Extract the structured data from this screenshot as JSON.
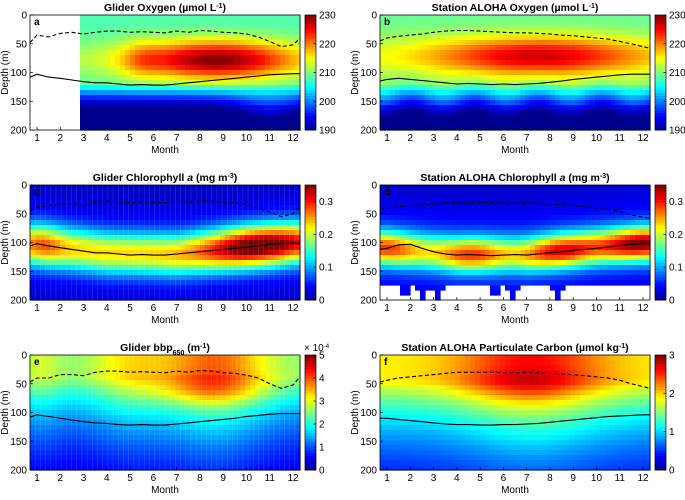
{
  "chart_data": [
    {
      "type": "heatmap",
      "panel_label": "a",
      "title_parts": [
        "Glider Oxygen (µmol L",
        "-1",
        ")"
      ],
      "xlabel": "Month",
      "ylabel": "Depth (m)",
      "x_ticks": [
        "1",
        "2",
        "3",
        "4",
        "5",
        "6",
        "7",
        "8",
        "9",
        "10",
        "11",
        "12"
      ],
      "y_ticks": [
        "0",
        "50",
        "100",
        "150",
        "200"
      ],
      "xlim": [
        0.7,
        12.3
      ],
      "ylim": [
        0,
        200
      ],
      "colorbar": {
        "min": 190,
        "max": 230,
        "ticks": [
          "190",
          "200",
          "210",
          "220",
          "230"
        ],
        "exponent_label": ""
      },
      "field": {
        "type": "oxygen_glider",
        "vmin": 190,
        "vmax": 230,
        "blank_before_month": 2.75
      },
      "dashed_line": {
        "name": "mixed layer depth",
        "x": [
          0.7,
          1.0,
          1.5,
          2.0,
          2.5,
          3.0,
          3.5,
          4.0,
          4.5,
          5.0,
          5.5,
          6.0,
          6.5,
          7.0,
          7.5,
          8.0,
          8.5,
          9.0,
          9.5,
          10.0,
          10.5,
          11.0,
          11.5,
          12.0,
          12.3
        ],
        "y": [
          48,
          35,
          38,
          32,
          30,
          33,
          30,
          28,
          28,
          30,
          29,
          30,
          31,
          28,
          30,
          27,
          28,
          30,
          31,
          33,
          38,
          46,
          55,
          52,
          40
        ]
      },
      "solid_line": {
        "name": "deep chlorophyll maximum",
        "x": [
          0.7,
          1.0,
          1.5,
          2.0,
          2.5,
          3.0,
          3.5,
          4.0,
          4.5,
          5.0,
          5.5,
          6.0,
          6.5,
          7.0,
          7.5,
          8.0,
          8.5,
          9.0,
          9.5,
          10.0,
          10.5,
          11.0,
          11.5,
          12.0,
          12.3
        ],
        "y": [
          108,
          103,
          108,
          110,
          113,
          116,
          118,
          118,
          120,
          122,
          121,
          122,
          122,
          120,
          118,
          116,
          114,
          112,
          110,
          108,
          106,
          104,
          103,
          102,
          102
        ]
      }
    },
    {
      "type": "heatmap",
      "panel_label": "b",
      "title_parts": [
        "Station ALOHA Oxygen (µmol L",
        "-1",
        ")"
      ],
      "xlabel": "Month",
      "ylabel": "Depth (m)",
      "x_ticks": [
        "1",
        "2",
        "3",
        "4",
        "5",
        "6",
        "7",
        "8",
        "9",
        "10",
        "11",
        "12"
      ],
      "y_ticks": [
        "0",
        "50",
        "100",
        "150",
        "200"
      ],
      "xlim": [
        0.7,
        12.3
      ],
      "ylim": [
        0,
        200
      ],
      "colorbar": {
        "min": 190,
        "max": 230,
        "ticks": [
          "190",
          "200",
          "210",
          "220",
          "230"
        ],
        "exponent_label": ""
      },
      "field": {
        "type": "oxygen_aloha",
        "vmin": 190,
        "vmax": 230
      },
      "dashed_line": {
        "name": "mixed layer depth",
        "x": [
          0.7,
          1.0,
          1.5,
          2.0,
          2.5,
          3.0,
          3.5,
          4.0,
          4.5,
          5.0,
          5.5,
          6.0,
          6.5,
          7.0,
          7.5,
          8.0,
          8.5,
          9.0,
          9.5,
          10.0,
          10.5,
          11.0,
          11.5,
          12.0,
          12.3
        ],
        "y": [
          45,
          40,
          37,
          35,
          33,
          30,
          28,
          27,
          27,
          28,
          29,
          30,
          31,
          31,
          32,
          33,
          35,
          36,
          38,
          40,
          42,
          46,
          50,
          55,
          58
        ]
      },
      "solid_line": {
        "name": "deep chlorophyll maximum",
        "x": [
          0.7,
          1.0,
          1.5,
          2.0,
          2.5,
          3.0,
          3.5,
          4.0,
          4.5,
          5.0,
          5.5,
          6.0,
          6.5,
          7.0,
          7.5,
          8.0,
          8.5,
          9.0,
          9.5,
          10.0,
          10.5,
          11.0,
          11.5,
          12.0,
          12.3
        ],
        "y": [
          115,
          112,
          110,
          112,
          114,
          116,
          118,
          120,
          119,
          120,
          121,
          120,
          121,
          120,
          119,
          117,
          115,
          112,
          110,
          108,
          106,
          104,
          103,
          103,
          103
        ]
      }
    },
    {
      "type": "heatmap",
      "panel_label": "c",
      "title_parts": [
        "Glider Chlorophyll ",
        "a",
        " (mg m",
        "-3",
        ")"
      ],
      "xlabel": "Month",
      "ylabel": "Depth (m)",
      "x_ticks": [
        "1",
        "2",
        "3",
        "4",
        "5",
        "6",
        "7",
        "8",
        "9",
        "10",
        "11",
        "12"
      ],
      "y_ticks": [
        "0",
        "50",
        "100",
        "150",
        "200"
      ],
      "xlim": [
        0.7,
        12.3
      ],
      "ylim": [
        0,
        200
      ],
      "colorbar": {
        "min": 0,
        "max": 0.35,
        "ticks": [
          "0",
          "0.1",
          "0.2",
          "0.3"
        ],
        "tick_values": [
          0,
          0.1,
          0.2,
          0.3
        ],
        "exponent_label": ""
      },
      "field": {
        "type": "chl_glider",
        "vmin": 0,
        "vmax": 0.35
      },
      "dashed_line": {
        "name": "mixed layer depth",
        "x": [
          0.7,
          1.0,
          1.5,
          2.0,
          2.5,
          3.0,
          3.5,
          4.0,
          4.5,
          5.0,
          5.5,
          6.0,
          6.5,
          7.0,
          7.5,
          8.0,
          8.5,
          9.0,
          9.5,
          10.0,
          10.5,
          11.0,
          11.5,
          12.0,
          12.3
        ],
        "y": [
          45,
          38,
          36,
          33,
          32,
          36,
          30,
          28,
          29,
          31,
          29,
          30,
          31,
          28,
          30,
          27,
          28,
          30,
          31,
          34,
          40,
          47,
          55,
          50,
          38
        ]
      },
      "solid_line": {
        "name": "deep chlorophyll maximum",
        "x": [
          0.7,
          1.0,
          1.5,
          2.0,
          2.5,
          3.0,
          3.5,
          4.0,
          4.5,
          5.0,
          5.5,
          6.0,
          6.5,
          7.0,
          7.5,
          8.0,
          8.5,
          9.0,
          9.5,
          10.0,
          10.5,
          11.0,
          11.5,
          12.0,
          12.3
        ],
        "y": [
          106,
          102,
          106,
          109,
          112,
          115,
          118,
          118,
          120,
          122,
          121,
          122,
          122,
          120,
          118,
          116,
          114,
          112,
          110,
          108,
          106,
          103,
          102,
          101,
          101
        ]
      }
    },
    {
      "type": "heatmap",
      "panel_label": "d",
      "title_parts": [
        "Station ALOHA Chlorophyll ",
        "a",
        " (mg m",
        "-3",
        ")"
      ],
      "xlabel": "Month",
      "ylabel": "Depth (m)",
      "x_ticks": [
        "1",
        "2",
        "3",
        "4",
        "5",
        "6",
        "7",
        "8",
        "9",
        "10",
        "11",
        "12"
      ],
      "y_ticks": [
        "0",
        "50",
        "100",
        "150",
        "200"
      ],
      "xlim": [
        0.7,
        12.3
      ],
      "ylim": [
        0,
        200
      ],
      "colorbar": {
        "min": 0,
        "max": 0.35,
        "ticks": [
          "0",
          "0.1",
          "0.2",
          "0.3"
        ],
        "tick_values": [
          0,
          0.1,
          0.2,
          0.3
        ],
        "exponent_label": ""
      },
      "field": {
        "type": "chl_aloha",
        "vmin": 0,
        "vmax": 0.35,
        "data_bottom_depth": 175,
        "notch_months": [
          1.8,
          2.5,
          3.2,
          5.6,
          6.4,
          8.3
        ]
      },
      "dashed_line": {
        "name": "mixed layer depth",
        "x": [
          0.7,
          1.0,
          1.5,
          2.0,
          2.5,
          3.0,
          3.5,
          4.0,
          4.5,
          5.0,
          5.5,
          6.0,
          6.5,
          7.0,
          7.5,
          8.0,
          8.5,
          9.0,
          9.5,
          10.0,
          10.5,
          11.0,
          11.5,
          12.0,
          12.3
        ],
        "y": [
          42,
          40,
          38,
          36,
          35,
          33,
          31,
          30,
          30,
          31,
          30,
          30,
          29,
          31,
          32,
          33,
          34,
          36,
          38,
          40,
          42,
          46,
          52,
          56,
          58
        ]
      },
      "solid_line": {
        "name": "deep chlorophyll maximum",
        "x": [
          0.7,
          1.0,
          1.5,
          2.0,
          2.5,
          3.0,
          3.5,
          4.0,
          4.5,
          5.0,
          5.5,
          6.0,
          6.5,
          7.0,
          7.5,
          8.0,
          8.5,
          9.0,
          9.5,
          10.0,
          10.5,
          11.0,
          11.5,
          12.0,
          12.3
        ],
        "y": [
          112,
          110,
          104,
          103,
          110,
          116,
          120,
          122,
          121,
          122,
          123,
          122,
          121,
          122,
          120,
          118,
          116,
          114,
          112,
          110,
          108,
          105,
          103,
          102,
          102
        ]
      }
    },
    {
      "type": "heatmap",
      "panel_label": "e",
      "title_parts": [
        "Glider bbp",
        "650",
        " (m",
        "-1",
        ")"
      ],
      "xlabel": "Month",
      "ylabel": "Depth (m)",
      "x_ticks": [
        "1",
        "2",
        "3",
        "4",
        "5",
        "6",
        "7",
        "8",
        "9",
        "10",
        "11",
        "12"
      ],
      "y_ticks": [
        "0",
        "50",
        "100",
        "150",
        "200"
      ],
      "xlim": [
        0.7,
        12.3
      ],
      "ylim": [
        0,
        200
      ],
      "colorbar": {
        "min": 0,
        "max": 5,
        "ticks": [
          "0",
          "1",
          "2",
          "3",
          "4",
          "5"
        ],
        "exponent_label": [
          "× 10",
          "-4"
        ]
      },
      "field": {
        "type": "bbp_glider",
        "vmin": 0,
        "vmax": 5
      },
      "dashed_line": {
        "name": "mixed layer depth",
        "x": [
          0.7,
          1.0,
          1.5,
          2.0,
          2.5,
          3.0,
          3.5,
          4.0,
          4.5,
          5.0,
          5.5,
          6.0,
          6.5,
          7.0,
          7.5,
          8.0,
          8.5,
          9.0,
          9.5,
          10.0,
          10.5,
          11.0,
          11.5,
          12.0,
          12.3
        ],
        "y": [
          47,
          40,
          40,
          34,
          34,
          36,
          30,
          28,
          28,
          30,
          29,
          30,
          31,
          28,
          30,
          27,
          28,
          31,
          32,
          35,
          40,
          50,
          58,
          52,
          38
        ]
      },
      "solid_line": {
        "name": "deep chlorophyll maximum",
        "x": [
          0.7,
          1.0,
          1.5,
          2.0,
          2.5,
          3.0,
          3.5,
          4.0,
          4.5,
          5.0,
          5.5,
          6.0,
          6.5,
          7.0,
          7.5,
          8.0,
          8.5,
          9.0,
          9.5,
          10.0,
          10.5,
          11.0,
          11.5,
          12.0,
          12.3
        ],
        "y": [
          108,
          104,
          107,
          110,
          113,
          116,
          118,
          119,
          121,
          122,
          121,
          122,
          122,
          120,
          118,
          116,
          114,
          112,
          110,
          107,
          105,
          103,
          102,
          102,
          102
        ]
      }
    },
    {
      "type": "heatmap",
      "panel_label": "f",
      "title_parts": [
        "Station ALOHA Particulate Carbon (µmol kg",
        "-1",
        ")"
      ],
      "xlabel": "Month",
      "ylabel": "Depth (m)",
      "x_ticks": [
        "1",
        "2",
        "3",
        "4",
        "5",
        "6",
        "7",
        "8",
        "9",
        "10",
        "11",
        "12"
      ],
      "y_ticks": [
        "0",
        "50",
        "100",
        "150",
        "200"
      ],
      "xlim": [
        0.7,
        12.3
      ],
      "ylim": [
        0,
        200
      ],
      "colorbar": {
        "min": 0,
        "max": 3,
        "ticks": [
          "0",
          "1",
          "2",
          "3"
        ],
        "exponent_label": ""
      },
      "field": {
        "type": "pc_aloha",
        "vmin": 0,
        "vmax": 3
      },
      "dashed_line": {
        "name": "mixed layer depth",
        "x": [
          0.7,
          1.0,
          1.5,
          2.0,
          2.5,
          3.0,
          3.5,
          4.0,
          4.5,
          5.0,
          5.5,
          6.0,
          6.5,
          7.0,
          7.5,
          8.0,
          8.5,
          9.0,
          9.5,
          10.0,
          10.5,
          11.0,
          11.5,
          12.0,
          12.3
        ],
        "y": [
          47,
          44,
          40,
          38,
          36,
          34,
          32,
          30,
          30,
          30,
          30,
          31,
          31,
          30,
          31,
          32,
          33,
          34,
          36,
          38,
          40,
          44,
          50,
          55,
          58
        ]
      },
      "solid_line": {
        "name": "deep chlorophyll maximum",
        "x": [
          0.7,
          1.0,
          1.5,
          2.0,
          2.5,
          3.0,
          3.5,
          4.0,
          4.5,
          5.0,
          5.5,
          6.0,
          6.5,
          7.0,
          7.5,
          8.0,
          8.5,
          9.0,
          9.5,
          10.0,
          10.5,
          11.0,
          11.5,
          12.0,
          12.3
        ],
        "y": [
          110,
          110,
          112,
          114,
          116,
          118,
          120,
          121,
          121,
          122,
          122,
          121,
          121,
          120,
          119,
          117,
          115,
          113,
          111,
          109,
          107,
          106,
          105,
          104,
          104
        ]
      }
    }
  ]
}
